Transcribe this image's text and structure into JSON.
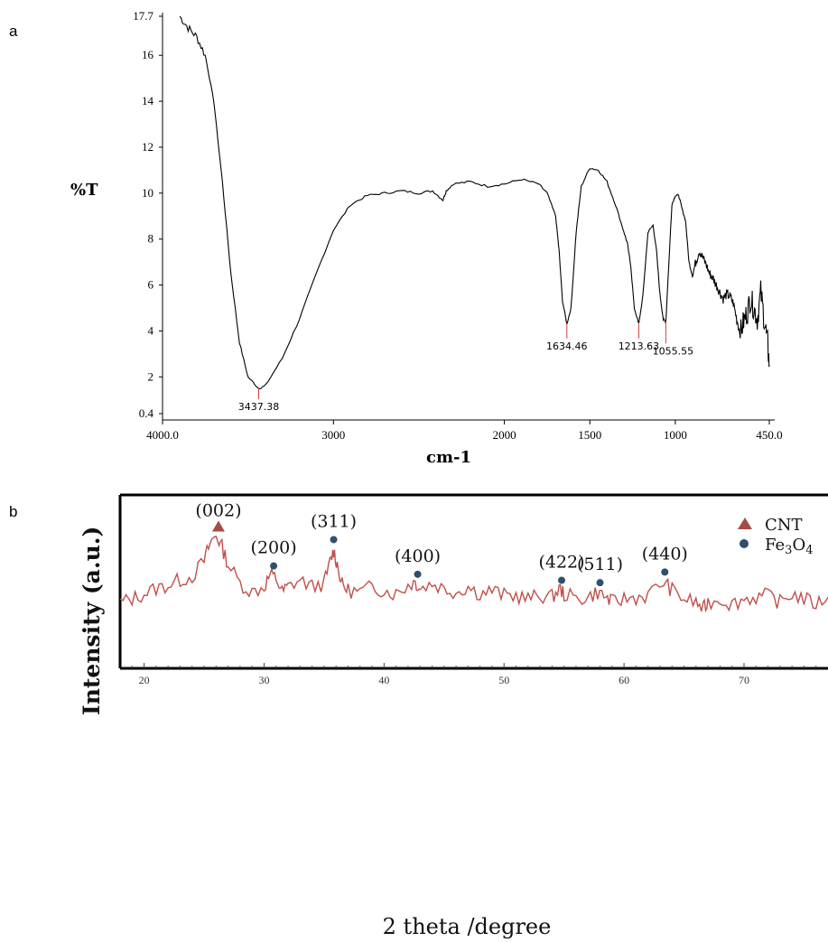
{
  "chart_data": [
    {
      "panel": "a",
      "type": "line",
      "title": "",
      "xlabel": "cm-1",
      "ylabel": "%T",
      "xlim": [
        4000.0,
        450.0
      ],
      "ylim": [
        0.4,
        17.7
      ],
      "x_reversed": true,
      "x_ticks": [
        "4000.0",
        "3000",
        "2000",
        "1500",
        "1000",
        "450.0"
      ],
      "y_ticks": [
        "17.7",
        "16",
        "14",
        "12",
        "10",
        "8",
        "6",
        "4",
        "2",
        "0.4"
      ],
      "series": [
        {
          "x": [
            3900,
            3850,
            3800,
            3750,
            3700,
            3650,
            3600,
            3550,
            3500,
            3437.38,
            3400,
            3300,
            3200,
            3100,
            3000,
            2900,
            2800,
            2700,
            2600,
            2500,
            2420,
            2360,
            2340,
            2300,
            2200,
            2100,
            2000,
            1900,
            1800,
            1750,
            1700,
            1680,
            1660,
            1634.46,
            1610,
            1580,
            1550,
            1500,
            1450,
            1400,
            1350,
            1300,
            1280,
            1260,
            1240,
            1213.63,
            1190,
            1160,
            1130,
            1110,
            1090,
            1070,
            1055.55,
            1040,
            1020,
            1000,
            980,
            960,
            940,
            920,
            900,
            880,
            860,
            840,
            820,
            800,
            780,
            760,
            740,
            720,
            700,
            680,
            660,
            640,
            620,
            600,
            580,
            560,
            540,
            520,
            500,
            480,
            460,
            450
          ],
          "y": [
            17.7,
            17.2,
            16.8,
            16,
            14,
            10.5,
            6.5,
            3.5,
            2,
            1.5,
            1.6,
            2.8,
            4.5,
            6.5,
            8.4,
            9.5,
            9.9,
            10.0,
            10.1,
            10.0,
            10.1,
            9.7,
            10.1,
            10.4,
            10.5,
            10.3,
            10.4,
            10.6,
            10.4,
            10.0,
            9.0,
            7.5,
            5.3,
            4.3,
            5.0,
            8.3,
            10.3,
            11.1,
            11.0,
            10.5,
            9.5,
            8.3,
            7.8,
            6.8,
            5.0,
            4.3,
            5.5,
            8.3,
            8.6,
            7.5,
            5.6,
            4.5,
            4.4,
            6.6,
            9.5,
            9.9,
            9.9,
            9.3,
            8.8,
            7.0,
            6.4,
            7.0,
            7.5,
            7.2,
            6.9,
            6.5,
            6.3,
            6.0,
            5.7,
            5.4,
            5.6,
            5.5,
            5.2,
            4.5,
            3.9,
            4.4,
            4.8,
            5.4,
            5.0,
            4.5,
            5.7,
            4.5,
            3.5,
            2.5
          ]
        }
      ],
      "peak_labels": [
        {
          "x": 3437.38,
          "label": "3437.38"
        },
        {
          "x": 1634.46,
          "label": "1634.46"
        },
        {
          "x": 1213.63,
          "label": "1213.63"
        },
        {
          "x": 1055.55,
          "label": "1055.55"
        }
      ]
    },
    {
      "panel": "b",
      "type": "line",
      "title": "",
      "xlabel": "2 theta /degree",
      "ylabel": "Intensity (a.u.)",
      "xlim": [
        18,
        77
      ],
      "ylim": [
        0,
        100
      ],
      "x_ticks": [
        20,
        30,
        40,
        50,
        60,
        70
      ],
      "colors": {
        "line": "#c0504d",
        "cnt_marker": "#a84a45",
        "fe3o4_marker": "#2e4f6e"
      },
      "series": [
        {
          "x": [
            18,
            19,
            20,
            21,
            22,
            23,
            24,
            25,
            25.5,
            26,
            26.5,
            27,
            28,
            29,
            30,
            30.5,
            31,
            31.5,
            32,
            33,
            34,
            35,
            35.5,
            35.8,
            36.1,
            36.5,
            37,
            38,
            39,
            40,
            41,
            42,
            42.6,
            43,
            44,
            45,
            46,
            47,
            48,
            49,
            50,
            51,
            52,
            53,
            54,
            54.6,
            55,
            56,
            57,
            57.8,
            58.5,
            59,
            60,
            61,
            62,
            63.3,
            64,
            65,
            66,
            66.6,
            67,
            68,
            69,
            70,
            71,
            72,
            73,
            74,
            75,
            76,
            77
          ],
          "y": [
            38,
            40,
            43,
            46,
            48,
            51,
            53,
            62,
            72,
            77,
            70,
            60,
            49,
            44,
            47,
            54,
            52,
            44,
            47,
            51,
            47,
            49,
            61,
            68,
            60,
            48,
            45,
            44,
            47,
            45,
            43,
            48,
            50,
            46,
            49,
            46,
            44,
            47,
            43,
            45,
            42,
            42,
            40,
            42,
            41,
            46,
            43,
            40,
            41,
            44,
            41,
            38,
            40,
            41,
            42,
            50,
            45,
            40,
            38,
            34,
            38,
            40,
            37,
            40,
            41,
            42,
            38,
            43,
            40,
            37,
            41
          ]
        }
      ],
      "legend": [
        {
          "label": "CNT",
          "marker": "triangle"
        },
        {
          "label": "Fe3O4",
          "marker": "circle"
        }
      ],
      "annotations": [
        {
          "x": 26.2,
          "label": "(002)",
          "marker": "triangle",
          "series": "CNT"
        },
        {
          "x": 30.8,
          "label": "(200)",
          "marker": "circle",
          "series": "Fe3O4"
        },
        {
          "x": 35.8,
          "label": "(311)",
          "marker": "circle",
          "series": "Fe3O4"
        },
        {
          "x": 42.8,
          "label": "(400)",
          "marker": "circle",
          "series": "Fe3O4"
        },
        {
          "x": 54.8,
          "label": "(422)",
          "marker": "circle",
          "series": "Fe3O4"
        },
        {
          "x": 58.0,
          "label": "(511)",
          "marker": "circle",
          "series": "Fe3O4"
        },
        {
          "x": 63.4,
          "label": "(440)",
          "marker": "circle",
          "series": "Fe3O4"
        }
      ]
    }
  ],
  "figure": {
    "panel_a_letter": "a",
    "panel_b_letter": "b"
  }
}
